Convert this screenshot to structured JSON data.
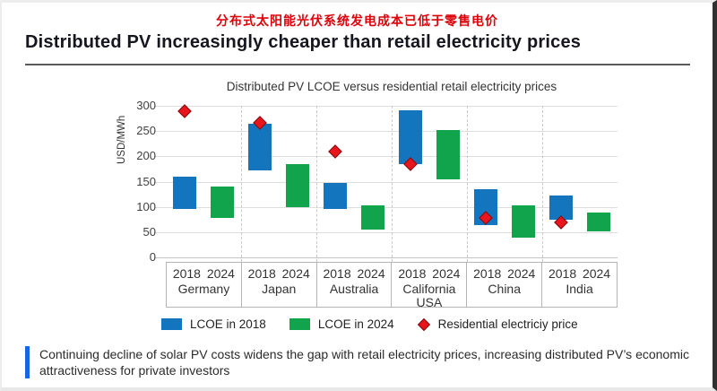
{
  "header": {
    "chinese_title": "分布式太阳能光伏系统发电成本已低于零售电价",
    "english_title": "Distributed PV increasingly cheaper than retail electricity prices",
    "chinese_title_color": "#dd0008"
  },
  "chart_data": {
    "type": "bar",
    "subtype": "floating-range-bars-with-scatter",
    "title": "Distributed PV LCOE versus residential retail electricity prices",
    "xlabel": "",
    "ylabel": "USD/MWh",
    "ylim": [
      0,
      300
    ],
    "yticks": [
      0,
      50,
      100,
      150,
      200,
      250,
      300
    ],
    "grid": "horizontal",
    "legend_position": "bottom",
    "categories": [
      "Germany",
      "Japan",
      "Australia",
      "California USA",
      "China",
      "India"
    ],
    "sub_categories": [
      "2018",
      "2024"
    ],
    "series": [
      {
        "name": "LCOE in 2018",
        "type": "range-bar",
        "color": "#1375bd",
        "ranges": [
          [
            95,
            160
          ],
          [
            172,
            265
          ],
          [
            95,
            147
          ],
          [
            185,
            292
          ],
          [
            63,
            135
          ],
          [
            75,
            123
          ]
        ]
      },
      {
        "name": "LCOE in 2024",
        "type": "range-bar",
        "color": "#12a34d",
        "ranges": [
          [
            78,
            140
          ],
          [
            100,
            185
          ],
          [
            55,
            103
          ],
          [
            155,
            252
          ],
          [
            40,
            103
          ],
          [
            52,
            88
          ]
        ]
      },
      {
        "name": "Residential electriciy price",
        "type": "scatter-diamond",
        "color": "#e8151c",
        "values": [
          290,
          267,
          210,
          185,
          78,
          70
        ]
      }
    ]
  },
  "footnote": {
    "text": "Continuing decline of solar PV costs widens the gap with retail electricity prices, increasing distributed PV’s economic attractiveness for private investors",
    "accent_color": "#1565e6"
  }
}
